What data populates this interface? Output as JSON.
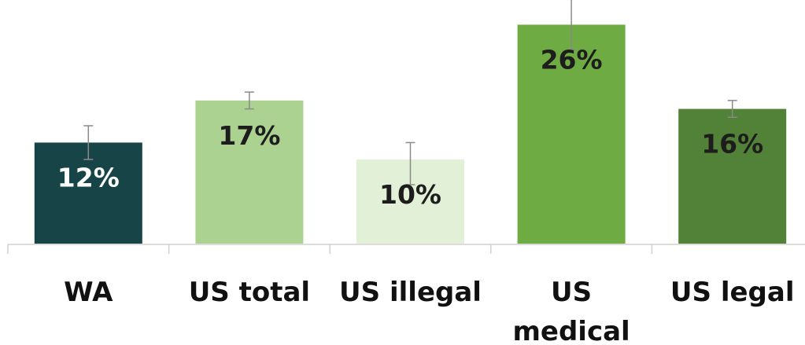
{
  "chart_data": {
    "type": "bar",
    "categories": [
      [
        "WA"
      ],
      [
        "US total"
      ],
      [
        "US illegal"
      ],
      [
        "US",
        "medical"
      ],
      [
        "US legal"
      ]
    ],
    "values": [
      12,
      17,
      10,
      26,
      16
    ],
    "data_labels": [
      "12%",
      "17%",
      "10%",
      "26%",
      "16%"
    ],
    "error_high": [
      14,
      18,
      12,
      29,
      17
    ],
    "error_low": [
      10,
      16,
      7,
      23,
      15
    ],
    "ylim": [
      0,
      28
    ],
    "colors": [
      "#174446",
      "#acd292",
      "#e3f0d8",
      "#6fab43",
      "#528138"
    ],
    "label_colors": [
      "#ffffff",
      "#1d1d1d",
      "#1d1d1d",
      "#1d1d1d",
      "#1d1d1d"
    ],
    "grid": false,
    "legend": "none"
  }
}
